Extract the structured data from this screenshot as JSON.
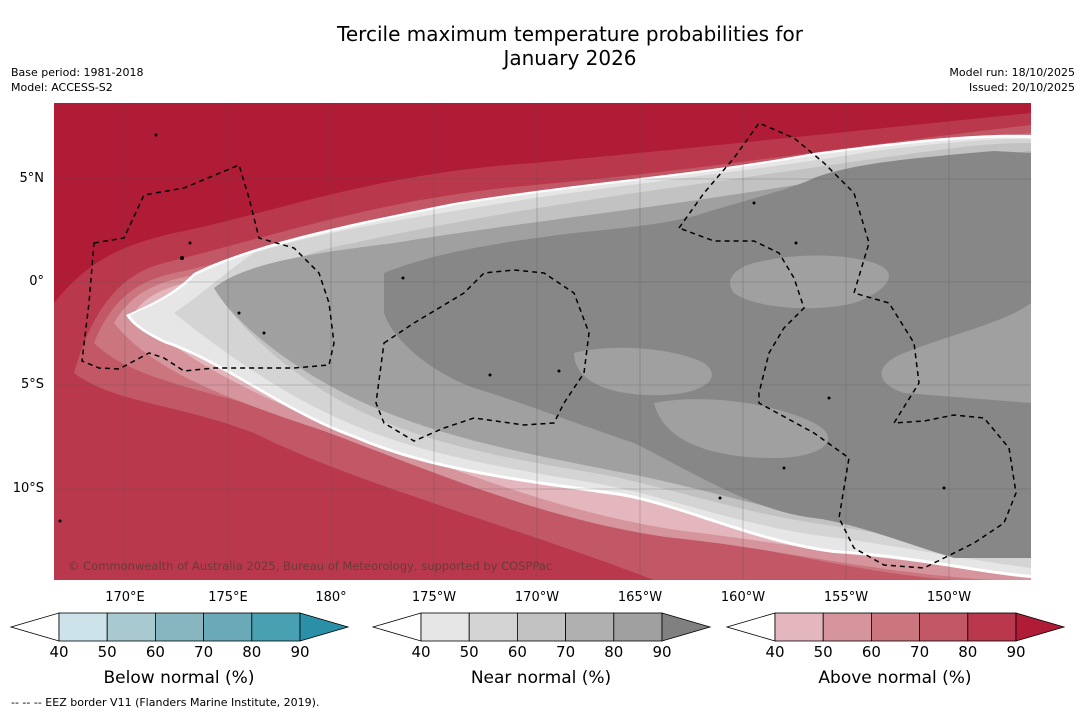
{
  "title": {
    "line1": "Tercile maximum temperature probabilities for",
    "line2": "January 2026"
  },
  "meta": {
    "base_period": "Base period: 1981-2018",
    "model": "Model: ACCESS-S2",
    "model_run": "Model run: 18/10/2025",
    "issued": "Issued: 20/10/2025"
  },
  "axes": {
    "lat_labels": [
      "5°N",
      "0°",
      "5°S",
      "10°S"
    ],
    "lon_labels": [
      "170°E",
      "175°E",
      "180°",
      "175°W",
      "170°W",
      "165°W",
      "160°W",
      "155°W",
      "150°W"
    ]
  },
  "copyright": "© Commonwealth of Australia 2025, Bureau of Meteorology, supported by COSPPac",
  "colorbars": {
    "below": {
      "label": "Below normal (%)",
      "ticks": [
        "40",
        "50",
        "60",
        "70",
        "80",
        "90"
      ],
      "colors": [
        "#ffffff",
        "#cce3e9",
        "#a8c9cf",
        "#87b6c1",
        "#6aaab8",
        "#48a0b1",
        "#2a90a8"
      ]
    },
    "near": {
      "label": "Near normal (%)",
      "ticks": [
        "40",
        "50",
        "60",
        "70",
        "80",
        "90"
      ],
      "colors": [
        "#ffffff",
        "#e6e6e6",
        "#d4d4d4",
        "#c2c2c2",
        "#b0b0b0",
        "#a0a0a0",
        "#808080"
      ]
    },
    "above": {
      "label": "Above normal (%)",
      "ticks": [
        "40",
        "50",
        "60",
        "70",
        "80",
        "90"
      ],
      "colors": [
        "#ffffff",
        "#e3b7bd",
        "#d6949c",
        "#cb757f",
        "#c25766",
        "#b9384b",
        "#b01c36"
      ]
    }
  },
  "footer": "--  --  -- EEZ border V11 (Flanders Marine Institute, 2019)."
}
